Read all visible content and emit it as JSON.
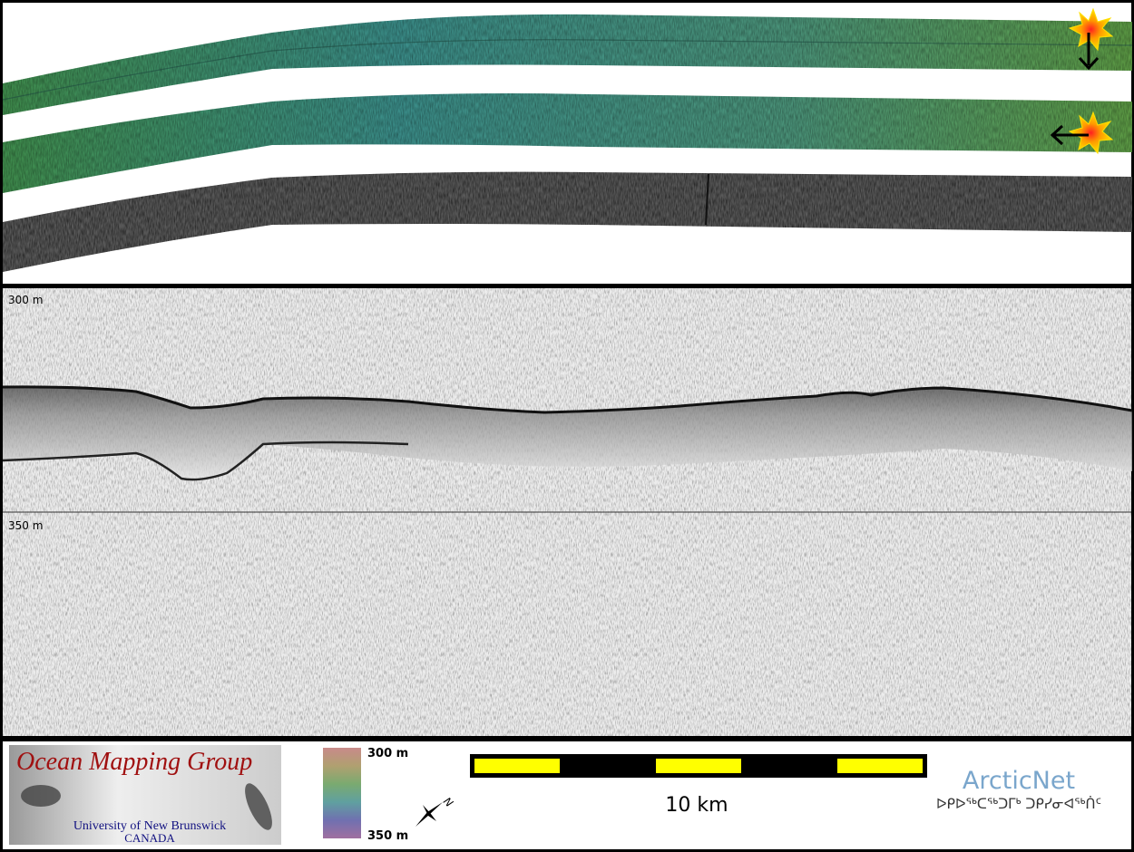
{
  "profile": {
    "top_depth_label": "300 m",
    "mid_depth_label": "350 m"
  },
  "logo": {
    "title": "Ocean Mapping Group",
    "university": "University of New Brunswick",
    "country": "CANADA"
  },
  "colorbar": {
    "top_label": "300 m",
    "bottom_label": "350 m"
  },
  "compass": {
    "label": "N"
  },
  "scale_bar": {
    "label": "10 km"
  },
  "partner": {
    "name": "ArcticNet",
    "syllabics": "ᐅᑭᐅᖅᑕᖅᑐᒥᒃ ᑐᑭᓯᓂᐊᖅᑏᑦ"
  }
}
